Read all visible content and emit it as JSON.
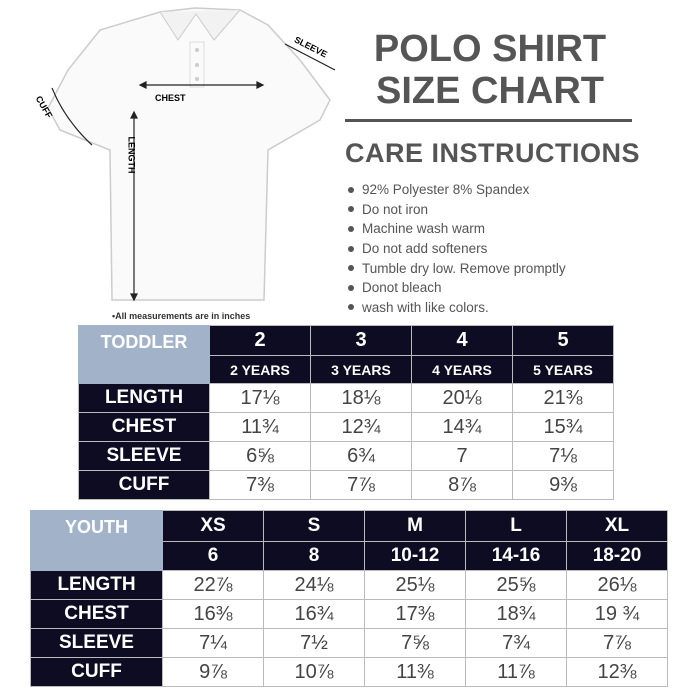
{
  "title": [
    "POLO SHIRT",
    "SIZE CHART"
  ],
  "shirt_labels": {
    "sleeve": "SLEEVE",
    "chest": "CHEST",
    "cuff": "CUFF",
    "length": "LENGTH"
  },
  "care": {
    "title": "CARE INSTRUCTIONS",
    "items": [
      "92% Polyester 8% Spandex",
      "Do not iron",
      "Machine wash warm",
      "Do not add softeners",
      "Tumble dry low. Remove promptly",
      "Donot bleach",
      "wash with like colors."
    ]
  },
  "note": "•All measurements are in inches",
  "toddler": {
    "label": "TODDLER",
    "sizes": [
      "2",
      "3",
      "4",
      "5"
    ],
    "ages": [
      "2 YEARS",
      "3 YEARS",
      "4 YEARS",
      "5 YEARS"
    ],
    "rows": [
      {
        "name": "LENGTH",
        "values": [
          "17⅛",
          "18⅛",
          "20⅛",
          "21⅜"
        ]
      },
      {
        "name": "CHEST",
        "values": [
          "11¾",
          "12¾",
          "14¾",
          "15¾"
        ]
      },
      {
        "name": "SLEEVE",
        "values": [
          "6⅝",
          "6¾",
          "7",
          "7⅛"
        ]
      },
      {
        "name": "CUFF",
        "values": [
          "7⅜",
          "7⅞",
          "8⅞",
          "9⅜"
        ]
      }
    ]
  },
  "youth": {
    "label": "YOUTH",
    "sizes": [
      "XS",
      "S",
      "M",
      "L",
      "XL"
    ],
    "ages": [
      "6",
      "8",
      "10-12",
      "14-16",
      "18-20"
    ],
    "rows": [
      {
        "name": "LENGTH",
        "values": [
          "22⅞",
          "24⅛",
          "25⅛",
          "25⅝",
          "26⅛"
        ]
      },
      {
        "name": "CHEST",
        "values": [
          "16⅜",
          "16¾",
          "17⅜",
          "18¾",
          "19 ¾"
        ]
      },
      {
        "name": "SLEEVE",
        "values": [
          "7¼",
          "7½",
          "7⅝",
          "7¾",
          "7⅞"
        ]
      },
      {
        "name": "CUFF",
        "values": [
          "9⅞",
          "10⅞",
          "11⅜",
          "11⅞",
          "12⅜"
        ]
      }
    ]
  },
  "colors": {
    "dark": "#0d0c22",
    "blue_header": "#a2b3c9",
    "text_gray": "#555555"
  }
}
